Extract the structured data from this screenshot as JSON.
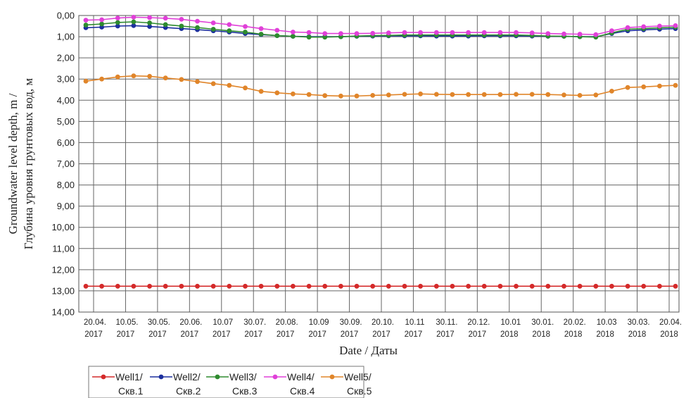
{
  "chart_data": {
    "type": "line",
    "xlabel": "Date / Даты",
    "ylabel_line1": "Groundwater level depth, m /",
    "ylabel_line2": "Глубина уровня грунтовых вод, м",
    "ylim": [
      0,
      14
    ],
    "y_inverted": true,
    "grid": true,
    "y_tick_labels": [
      "0,00",
      "1,00",
      "2,00",
      "3,00",
      "4,00",
      "5,00",
      "6,00",
      "7,00",
      "8,00",
      "9,00",
      "10,00",
      "11,00",
      "12,00",
      "13,00",
      "14,00"
    ],
    "x_tick_labels": [
      [
        "20.04.",
        "2017"
      ],
      [
        "10.05.",
        "2017"
      ],
      [
        "30.05.",
        "2017"
      ],
      [
        "20.06.",
        "2017"
      ],
      [
        "10.07",
        "2017"
      ],
      [
        "30.07.",
        "2017"
      ],
      [
        "20.08.",
        "2017"
      ],
      [
        "10.09",
        "2017"
      ],
      [
        "30.09.",
        "2017"
      ],
      [
        "20.10.",
        "2017"
      ],
      [
        "10.11",
        "2017"
      ],
      [
        "30.11.",
        "2017"
      ],
      [
        "20.12.",
        "2017"
      ],
      [
        "10.01",
        "2018"
      ],
      [
        "30.01.",
        "2018"
      ],
      [
        "20.02.",
        "2018"
      ],
      [
        "10.03",
        "2018"
      ],
      [
        "30.03.",
        "2018"
      ],
      [
        "20.04.",
        "2018"
      ]
    ],
    "legend_position": "bottom-left",
    "series": [
      {
        "name": "Well1/ Скв.1",
        "name_line1": "Well1/",
        "name_line2": "Скв.1",
        "color": "#d42a2a",
        "values": [
          12.78,
          12.78,
          12.78,
          12.78,
          12.78,
          12.78,
          12.78,
          12.78,
          12.78,
          12.78,
          12.78,
          12.78,
          12.78,
          12.78,
          12.78,
          12.78,
          12.78,
          12.78,
          12.78,
          12.78,
          12.78,
          12.78,
          12.78,
          12.78,
          12.78,
          12.78,
          12.78,
          12.78,
          12.78,
          12.78,
          12.78,
          12.78,
          12.78,
          12.78,
          12.78,
          12.78,
          12.78,
          12.78
        ]
      },
      {
        "name": "Well2/ Скв.2",
        "name_line1": "Well2/",
        "name_line2": "Скв.2",
        "color": "#1c2f9e",
        "values": [
          0.58,
          0.55,
          0.5,
          0.48,
          0.52,
          0.57,
          0.62,
          0.67,
          0.72,
          0.78,
          0.85,
          0.9,
          0.95,
          0.98,
          1.0,
          1.0,
          1.0,
          0.98,
          0.97,
          0.96,
          0.96,
          0.96,
          0.97,
          0.97,
          0.97,
          0.96,
          0.96,
          0.96,
          0.97,
          0.98,
          0.98,
          1.0,
          1.0,
          0.85,
          0.72,
          0.68,
          0.65,
          0.62
        ]
      },
      {
        "name": "Well3/ Скв.3",
        "name_line1": "Well3/",
        "name_line2": "Скв.3",
        "color": "#2e8b2e",
        "values": [
          0.45,
          0.4,
          0.33,
          0.3,
          0.35,
          0.43,
          0.5,
          0.57,
          0.65,
          0.72,
          0.78,
          0.88,
          0.95,
          0.98,
          1.02,
          1.02,
          1.0,
          0.97,
          0.95,
          0.94,
          0.92,
          0.92,
          0.92,
          0.92,
          0.92,
          0.92,
          0.92,
          0.92,
          0.94,
          0.97,
          0.98,
          1.0,
          1.02,
          0.82,
          0.65,
          0.62,
          0.58,
          0.55
        ]
      },
      {
        "name": "Well4/ Скв.4",
        "name_line1": "Well4/",
        "name_line2": "Скв.4",
        "color": "#e040d8",
        "values": [
          0.22,
          0.2,
          0.12,
          0.08,
          0.1,
          0.13,
          0.18,
          0.27,
          0.35,
          0.43,
          0.52,
          0.62,
          0.7,
          0.78,
          0.8,
          0.85,
          0.85,
          0.85,
          0.84,
          0.82,
          0.8,
          0.8,
          0.8,
          0.8,
          0.8,
          0.8,
          0.8,
          0.8,
          0.82,
          0.85,
          0.87,
          0.88,
          0.9,
          0.72,
          0.57,
          0.53,
          0.5,
          0.48
        ]
      },
      {
        "name": "Well5/ Скв.5",
        "name_line1": "Well5/",
        "name_line2": "Скв.5",
        "color": "#e0852a",
        "values": [
          3.1,
          3.0,
          2.9,
          2.85,
          2.87,
          2.95,
          3.02,
          3.12,
          3.22,
          3.3,
          3.42,
          3.58,
          3.65,
          3.7,
          3.73,
          3.78,
          3.8,
          3.8,
          3.77,
          3.75,
          3.72,
          3.7,
          3.72,
          3.73,
          3.73,
          3.73,
          3.73,
          3.72,
          3.72,
          3.73,
          3.75,
          3.77,
          3.75,
          3.57,
          3.4,
          3.37,
          3.33,
          3.3
        ]
      }
    ]
  }
}
